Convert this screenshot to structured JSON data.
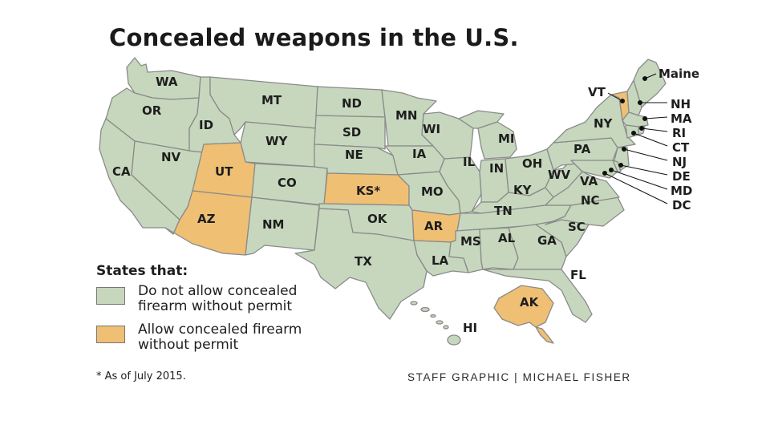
{
  "title": "Concealed weapons in the U.S.",
  "colors": {
    "no_permit_required": "#efbf74",
    "permit_required": "#c6d7bd",
    "border": "#8a8a8a",
    "label": "#1e1e1e"
  },
  "states": {
    "WA": "WA",
    "OR": "OR",
    "CA": "CA",
    "NV": "NV",
    "ID": "ID",
    "MT": "MT",
    "WY": "WY",
    "UT": "UT",
    "AZ": "AZ",
    "CO": "CO",
    "NM": "NM",
    "ND": "ND",
    "SD": "SD",
    "NE": "NE",
    "KS": "KS*",
    "OK": "OK",
    "TX": "TX",
    "MN": "MN",
    "IA": "IA",
    "MO": "MO",
    "AR": "AR",
    "LA": "LA",
    "WI": "WI",
    "IL": "IL",
    "MI": "MI",
    "IN": "IN",
    "OH": "OH",
    "KY": "KY",
    "TN": "TN",
    "MS": "MS",
    "AL": "AL",
    "GA": "GA",
    "FL": "FL",
    "SC": "SC",
    "NC": "NC",
    "VA": "VA",
    "WV": "WV",
    "PA": "PA",
    "NY": "NY",
    "VT": "VT",
    "AK": "AK",
    "HI": "HI"
  },
  "northeast_callouts": [
    "Maine",
    "NH",
    "MA",
    "RI",
    "CT",
    "NJ",
    "DE",
    "MD",
    "DC"
  ],
  "legend": {
    "title": "States that:",
    "items": [
      {
        "label": "Do not allow concealed firearm without permit",
        "line1": "Do not allow concealed",
        "line2": "firearm without permit",
        "color": "#c6d7bd"
      },
      {
        "label": "Allow concealed firearm without permit",
        "line1": "Allow concealed firearm",
        "line2": "without permit",
        "color": "#efbf74"
      }
    ]
  },
  "states_allowing_without_permit": [
    "VT",
    "UT",
    "AZ",
    "KS",
    "AR",
    "AK"
  ],
  "footnote": "* As of July 2015.",
  "credit": "STAFF GRAPHIC | MICHAEL FISHER"
}
